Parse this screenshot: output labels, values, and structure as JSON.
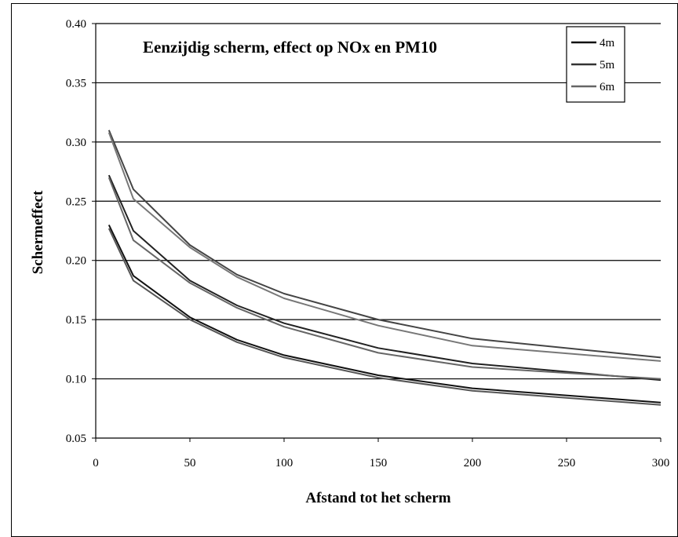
{
  "chart_data": {
    "type": "line",
    "title": "Eenzijdig scherm, effect op NOx en PM10",
    "xlabel": "Afstand tot het scherm",
    "ylabel": "Schermeffect",
    "xlim": [
      0,
      300
    ],
    "ylim": [
      0.05,
      0.4
    ],
    "xticks": [
      "0",
      "50",
      "100",
      "150",
      "200",
      "250",
      "300"
    ],
    "yticks": [
      "0.05",
      "0.10",
      "0.15",
      "0.20",
      "0.25",
      "0.30",
      "0.35",
      "0.40"
    ],
    "grid": "horizontal",
    "legend_position": "top-right",
    "x": [
      7,
      20,
      50,
      75,
      100,
      150,
      200,
      300
    ],
    "series": [
      {
        "name": "4m",
        "color": "#111111",
        "values": [
          0.23,
          0.187,
          0.152,
          0.133,
          0.12,
          0.103,
          0.092,
          0.08
        ]
      },
      {
        "name": "4m",
        "color": "#555555",
        "values": [
          0.227,
          0.183,
          0.15,
          0.131,
          0.118,
          0.101,
          0.09,
          0.078
        ]
      },
      {
        "name": "5m",
        "color": "#222222",
        "values": [
          0.272,
          0.225,
          0.183,
          0.162,
          0.147,
          0.126,
          0.113,
          0.099
        ]
      },
      {
        "name": "5m",
        "color": "#666666",
        "values": [
          0.27,
          0.217,
          0.181,
          0.16,
          0.144,
          0.122,
          0.11,
          0.1
        ]
      },
      {
        "name": "6m",
        "color": "#444444",
        "values": [
          0.31,
          0.26,
          0.213,
          0.188,
          0.172,
          0.15,
          0.134,
          0.118
        ]
      },
      {
        "name": "6m",
        "color": "#777777",
        "values": [
          0.308,
          0.252,
          0.211,
          0.186,
          0.168,
          0.145,
          0.128,
          0.115
        ]
      }
    ],
    "legend": [
      {
        "label": "4m",
        "color": "#111111"
      },
      {
        "label": "5m",
        "color": "#333333"
      },
      {
        "label": "6m",
        "color": "#666666"
      }
    ]
  }
}
